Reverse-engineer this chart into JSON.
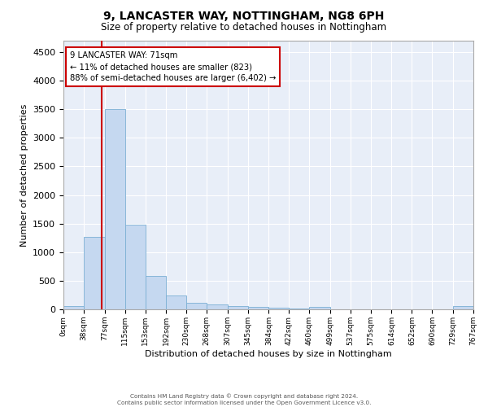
{
  "title": "9, LANCASTER WAY, NOTTINGHAM, NG8 6PH",
  "subtitle": "Size of property relative to detached houses in Nottingham",
  "xlabel": "Distribution of detached houses by size in Nottingham",
  "ylabel": "Number of detached properties",
  "bar_color": "#c5d8f0",
  "bar_edge_color": "#7bafd4",
  "bg_color": "#e8eef8",
  "grid_color": "#ffffff",
  "annotation_box_color": "#cc0000",
  "property_line_x": 71,
  "annotation_text_line1": "9 LANCASTER WAY: 71sqm",
  "annotation_text_line2": "← 11% of detached houses are smaller (823)",
  "annotation_text_line3": "88% of semi-detached houses are larger (6,402) →",
  "bin_edges": [
    0,
    38,
    77,
    115,
    153,
    192,
    230,
    268,
    307,
    345,
    384,
    422,
    460,
    499,
    537,
    575,
    614,
    652,
    690,
    729,
    767
  ],
  "bar_heights": [
    50,
    1270,
    3500,
    1480,
    580,
    240,
    120,
    80,
    50,
    40,
    30,
    20,
    40,
    5,
    5,
    5,
    5,
    0,
    0,
    50
  ],
  "ylim": [
    0,
    4700
  ],
  "yticks": [
    0,
    500,
    1000,
    1500,
    2000,
    2500,
    3000,
    3500,
    4000,
    4500
  ],
  "footer_line1": "Contains HM Land Registry data © Crown copyright and database right 2024.",
  "footer_line2": "Contains public sector information licensed under the Open Government Licence v3.0."
}
